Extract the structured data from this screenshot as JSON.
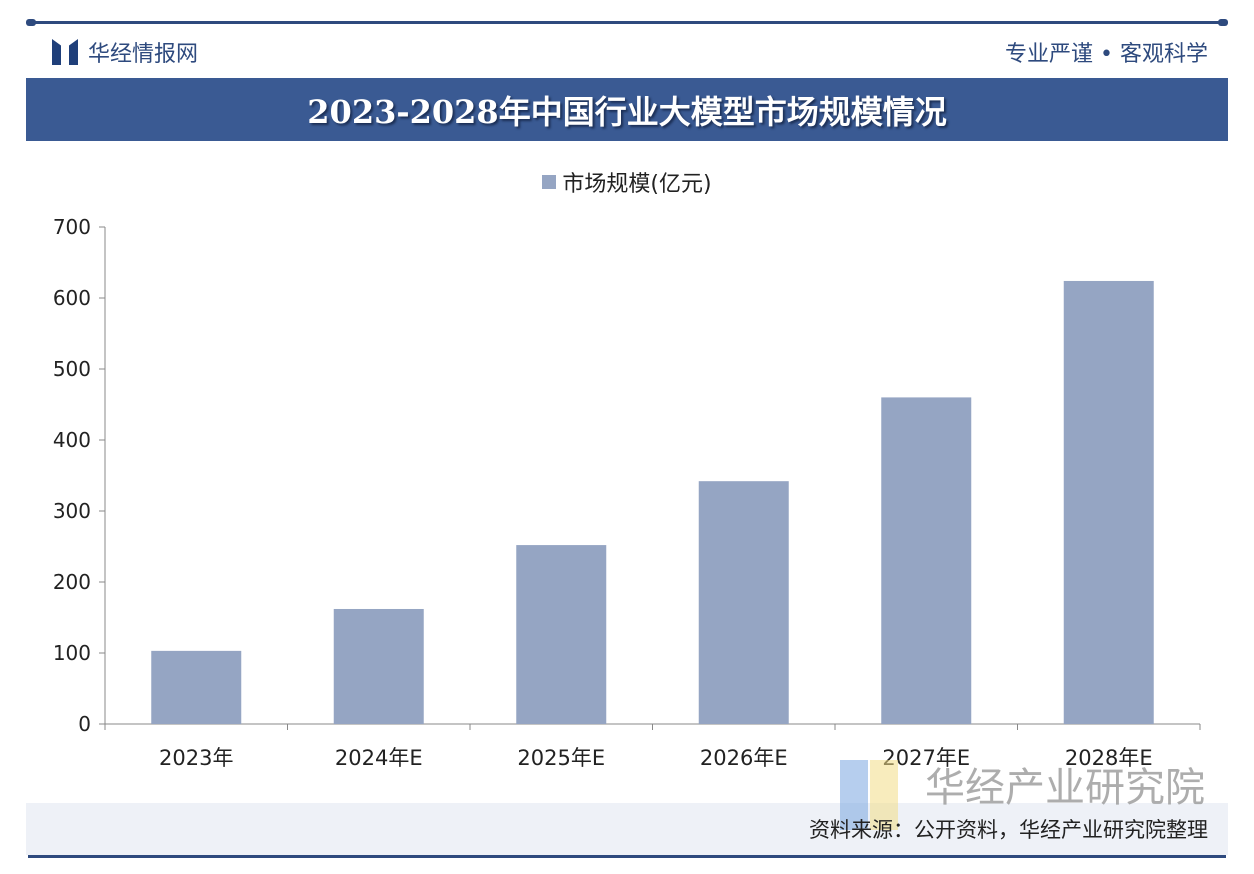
{
  "header": {
    "brand": "华经情报网",
    "slogan": "专业严谨 • 客观科学",
    "title": "2023-2028年中国行业大模型市场规模情况"
  },
  "chart_data": {
    "type": "bar",
    "title": "2023-2028年中国行业大模型市场规模情况",
    "categories": [
      "2023年",
      "2024年E",
      "2025年E",
      "2026年E",
      "2027年E",
      "2028年E"
    ],
    "series": [
      {
        "name": "市场规模(亿元)",
        "values": [
          103,
          162,
          252,
          342,
          460,
          624
        ],
        "color": "#95a5c3"
      }
    ],
    "ylim": [
      0,
      700
    ],
    "yticks": [
      "0",
      "100",
      "200",
      "300",
      "400",
      "500",
      "600",
      "700"
    ],
    "grid": false,
    "legend": "top-center"
  },
  "footer": {
    "source": "资料来源：公开资料，华经产业研究院整理"
  },
  "watermark": {
    "text": "华经产业研究院"
  },
  "colors": {
    "accent": "#3a5a93",
    "bar": "#95a5c3"
  }
}
